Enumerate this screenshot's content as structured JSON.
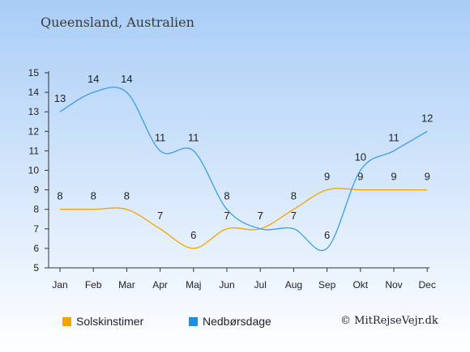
{
  "header": {
    "title": "Queensland, Australien"
  },
  "footer": {
    "credit": "© MitRejseVejr.dk"
  },
  "legend": [
    {
      "label": "Solskinstimer",
      "color": "#f5a300"
    },
    {
      "label": "Nedbørsdage",
      "color": "#1e8fe0"
    }
  ],
  "chart_data": {
    "type": "line",
    "title": "Queensland, Australien",
    "categories": [
      "Jan",
      "Feb",
      "Mar",
      "Apr",
      "Maj",
      "Jun",
      "Jul",
      "Aug",
      "Sep",
      "Okt",
      "Nov",
      "Dec"
    ],
    "series": [
      {
        "name": "Solskinstimer",
        "color": "#f5a300",
        "values": [
          8,
          8,
          8,
          7,
          6,
          7,
          7,
          8,
          9,
          9,
          9,
          9
        ]
      },
      {
        "name": "Nedbørsdage",
        "color": "#3a9ee4",
        "values": [
          13,
          14,
          14,
          11,
          11,
          8,
          7,
          7,
          6,
          10,
          11,
          12
        ]
      }
    ],
    "ylim": [
      5,
      15
    ],
    "yticks": [
      5,
      6,
      7,
      8,
      9,
      10,
      11,
      12,
      13,
      14,
      15
    ],
    "grid": false,
    "legend_position": "bottom-left"
  }
}
